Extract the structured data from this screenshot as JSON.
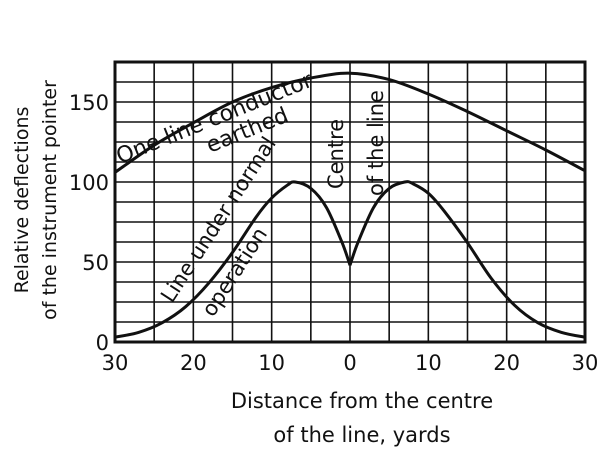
{
  "chart_data": {
    "type": "line",
    "ylabel_lines": [
      "Relative deflections",
      "of the instrument pointer"
    ],
    "xlabel_lines": [
      "Distance from the centre",
      "of the line, yards"
    ],
    "x_ticks": [
      "30",
      "20",
      "10",
      "0",
      "10",
      "20",
      "30"
    ],
    "y_ticks": [
      "0",
      "50",
      "100",
      "150"
    ],
    "xlim": [
      -30,
      30
    ],
    "ylim": [
      0,
      175
    ],
    "grid": true,
    "series": [
      {
        "name": "One line conductor earthed",
        "x": [
          -30,
          -25,
          -20,
          -15,
          -10,
          -5,
          0,
          5,
          10,
          15,
          20,
          25,
          30
        ],
        "y": [
          106,
          123,
          137,
          150,
          159,
          165,
          168,
          164,
          155,
          144,
          132,
          120,
          107
        ]
      },
      {
        "name": "Line under normal operation",
        "x": [
          -30,
          -27,
          -24,
          -21,
          -18,
          -15,
          -12,
          -10,
          -8,
          -7,
          -5,
          -3,
          -1,
          0,
          1,
          3,
          5,
          7,
          8,
          10,
          12,
          15,
          18,
          21,
          24,
          27,
          30
        ],
        "y": [
          3,
          6,
          12,
          22,
          37,
          56,
          78,
          90,
          98,
          100,
          96,
          84,
          62,
          48,
          62,
          84,
          96,
          100,
          99,
          93,
          82,
          62,
          40,
          23,
          12,
          6,
          3
        ]
      }
    ],
    "annotations": {
      "earthed_line1": "One line conductor",
      "earthed_line2": "earthed",
      "normal_line1": "Line under normal",
      "normal_line2": "operation",
      "centre_line1": "Centre",
      "centre_line2": "of the line"
    }
  }
}
